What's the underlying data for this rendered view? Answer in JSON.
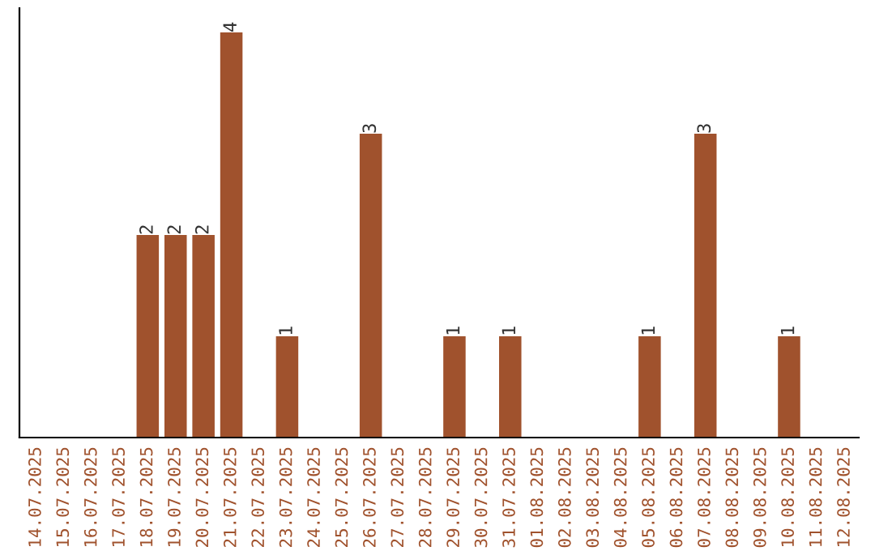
{
  "chart_data": {
    "type": "bar",
    "categories": [
      "14.07.2025",
      "15.07.2025",
      "16.07.2025",
      "17.07.2025",
      "18.07.2025",
      "19.07.2025",
      "20.07.2025",
      "21.07.2025",
      "22.07.2025",
      "23.07.2025",
      "24.07.2025",
      "25.07.2025",
      "26.07.2025",
      "27.07.2025",
      "28.07.2025",
      "29.07.2025",
      "30.07.2025",
      "31.07.2025",
      "01.08.2025",
      "02.08.2025",
      "03.08.2025",
      "04.08.2025",
      "05.08.2025",
      "06.08.2025",
      "07.08.2025",
      "08.08.2025",
      "09.08.2025",
      "10.08.2025",
      "11.08.2025",
      "12.08.2025"
    ],
    "values": [
      0,
      0,
      0,
      0,
      2,
      2,
      2,
      4,
      0,
      1,
      0,
      0,
      3,
      0,
      0,
      1,
      0,
      1,
      0,
      0,
      0,
      0,
      1,
      0,
      3,
      0,
      0,
      1,
      0,
      0
    ],
    "value_labels": [
      null,
      null,
      null,
      null,
      "2",
      "2",
      "2",
      "4",
      null,
      "1",
      null,
      null,
      "3",
      null,
      null,
      "1",
      null,
      "1",
      null,
      null,
      null,
      null,
      "1",
      null,
      "3",
      null,
      null,
      "1",
      null,
      null
    ],
    "color": "#a0522d",
    "tick_labels": "x",
    "grid": false,
    "legend": false
  }
}
